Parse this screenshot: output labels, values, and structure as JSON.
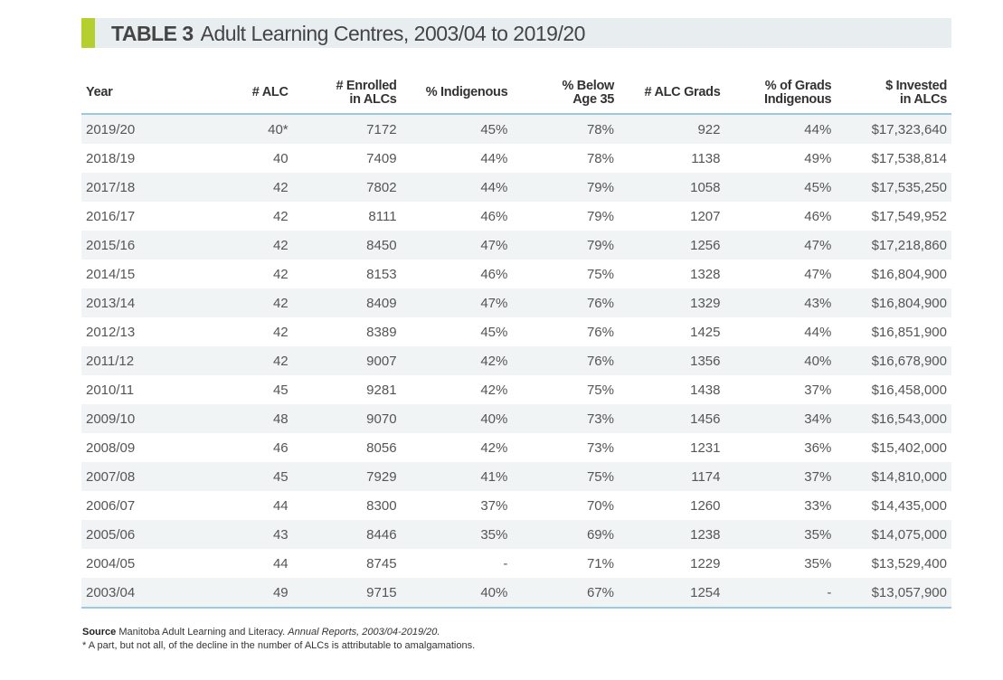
{
  "title": {
    "label": "TABLE 3",
    "text": "Adult Learning Centres, 2003/04 to 2019/20"
  },
  "colors": {
    "accent": "#b5cf2e",
    "rule": "#9cc9e2",
    "title_bg": "#e8edf0"
  },
  "columns": [
    "Year",
    "# ALC",
    "# Enrolled in ALCs",
    "% Indigenous",
    "% Below Age 35",
    "# ALC Grads",
    "% of Grads Indigenous",
    "$ Invested in ALCs"
  ],
  "rows": [
    [
      "2019/20",
      "40*",
      "7172",
      "45%",
      "78%",
      "922",
      "44%",
      "$17,323,640"
    ],
    [
      "2018/19",
      "40",
      "7409",
      "44%",
      "78%",
      "1138",
      "49%",
      "$17,538,814"
    ],
    [
      "2017/18",
      "42",
      "7802",
      "44%",
      "79%",
      "1058",
      "45%",
      "$17,535,250"
    ],
    [
      "2016/17",
      "42",
      "8111",
      "46%",
      "79%",
      "1207",
      "46%",
      "$17,549,952"
    ],
    [
      "2015/16",
      "42",
      "8450",
      "47%",
      "79%",
      "1256",
      "47%",
      "$17,218,860"
    ],
    [
      "2014/15",
      "42",
      "8153",
      "46%",
      "75%",
      "1328",
      "47%",
      "$16,804,900"
    ],
    [
      "2013/14",
      "42",
      "8409",
      "47%",
      "76%",
      "1329",
      "43%",
      "$16,804,900"
    ],
    [
      "2012/13",
      "42",
      "8389",
      "45%",
      "76%",
      "1425",
      "44%",
      "$16,851,900"
    ],
    [
      "2011/12",
      "42",
      "9007",
      "42%",
      "76%",
      "1356",
      "40%",
      "$16,678,900"
    ],
    [
      "2010/11",
      "45",
      "9281",
      "42%",
      "75%",
      "1438",
      "37%",
      "$16,458,000"
    ],
    [
      "2009/10",
      "48",
      "9070",
      "40%",
      "73%",
      "1456",
      "34%",
      "$16,543,000"
    ],
    [
      "2008/09",
      "46",
      "8056",
      "42%",
      "73%",
      "1231",
      "36%",
      "$15,402,000"
    ],
    [
      "2007/08",
      "45",
      "7929",
      "41%",
      "75%",
      "1174",
      "37%",
      "$14,810,000"
    ],
    [
      "2006/07",
      "44",
      "8300",
      "37%",
      "70%",
      "1260",
      "33%",
      "$14,435,000"
    ],
    [
      "2005/06",
      "43",
      "8446",
      "35%",
      "69%",
      "1238",
      "35%",
      "$14,075,000"
    ],
    [
      "2004/05",
      "44",
      "8745",
      "-",
      "71%",
      "1229",
      "35%",
      "$13,529,400"
    ],
    [
      "2003/04",
      "49",
      "9715",
      "40%",
      "67%",
      "1254",
      "-",
      "$13,057,900"
    ]
  ],
  "notes": {
    "source_label": "Source",
    "source_text": "Manitoba Adult Learning and Literacy.",
    "source_italic": "Annual Reports, 2003/04-2019/20.",
    "footnote": "* A part, but not all, of the decline in the number of ALCs is attributable to amalgamations."
  }
}
